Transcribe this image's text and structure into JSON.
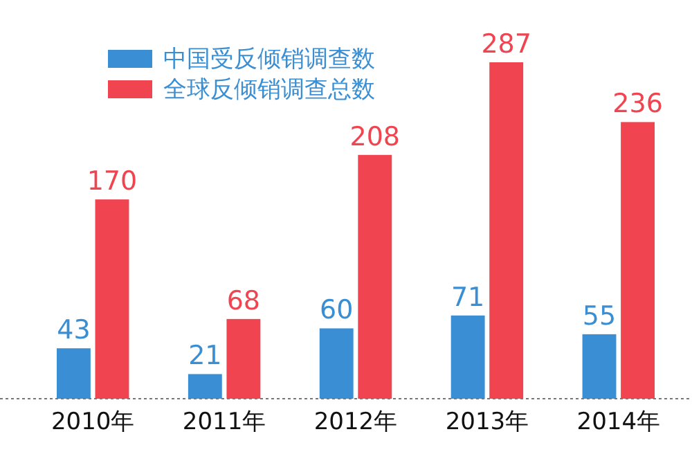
{
  "chart_data": {
    "type": "bar",
    "categories": [
      "2010年",
      "2011年",
      "2012年",
      "2013年",
      "2014年"
    ],
    "series": [
      {
        "name": "中国受反倾销调查数",
        "color": "#3a8fd4",
        "values": [
          43,
          21,
          60,
          71,
          55
        ]
      },
      {
        "name": "全球反倾销调查总数",
        "color": "#f04450",
        "values": [
          170,
          68,
          208,
          287,
          236
        ]
      }
    ],
    "data_labels": true,
    "tick_labels": "x",
    "legend": "top left",
    "grid": false
  }
}
